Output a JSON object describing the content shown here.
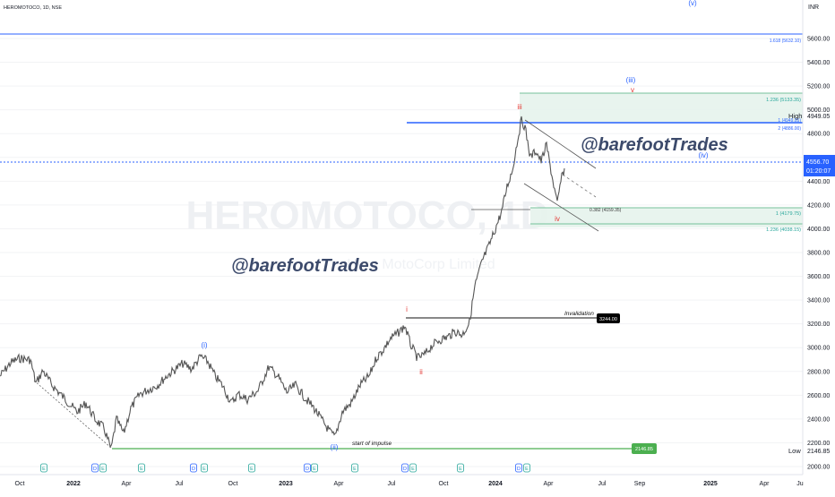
{
  "header": {
    "symbol_line": "HEROMOTOCO, 1D, NSE",
    "currency": "INR"
  },
  "watermark": {
    "big": "HEROMOTOCO, 1D",
    "sub": "Hero MotoCorp Limited"
  },
  "author_tags": [
    "@barefootTrades",
    "@barefootTrades"
  ],
  "price_tags": {
    "last_price": "4556.70",
    "countdown": "01:20:07",
    "high_label": "High",
    "high_value": "4949.05",
    "low_label": "Low",
    "low_value": "2146.85"
  },
  "annotations": {
    "start_of_impulse": "start of impulse",
    "start_value": "2146.85",
    "invalidation": "Invalidation",
    "invalidation_value": "3244.00",
    "fib_1618": "1.618 (5632.10)",
    "fib_1236_up": "1.236 (5133.35)",
    "fib_1_up": "1 (4949.05)",
    "fib_2": "2 (4886.00)",
    "fib_0382": "0.382 (4159.35)",
    "fib_1_dn": "1 (4179.75)",
    "fib_1236_dn": "1.236 (4038.15)",
    "waves": {
      "i_blue": "(i)",
      "ii_blue": "(ii)",
      "iii_blue": "(iii)",
      "iv_blue": "(iv)",
      "v_blue": "(v)",
      "i_red": "i",
      "ii_red": "ii",
      "iii_red": "iii",
      "iv_red": "iv",
      "v_red": "v"
    }
  },
  "event_icons": [
    "E",
    "D",
    "E",
    "E",
    "D",
    "E",
    "E",
    "D",
    "E",
    "E",
    "D",
    "E",
    "E",
    "D",
    "E"
  ],
  "chart_data": {
    "type": "line",
    "title": "HEROMOTOCO, 1D, NSE",
    "ylabel": "INR",
    "ylim": [
      2000,
      6000
    ],
    "y_ticks": [
      2000,
      2200,
      2400,
      2600,
      2800,
      3000,
      3200,
      3400,
      3600,
      3800,
      4000,
      4200,
      4400,
      4600,
      4800,
      5000,
      5200,
      5400,
      5600
    ],
    "x_ticks": [
      "Oct",
      "2022",
      "Apr",
      "Jul",
      "Oct",
      "2023",
      "Apr",
      "Jul",
      "Oct",
      "2024",
      "Apr",
      "Jul",
      "Sep",
      "2025",
      "Apr",
      "Ju"
    ],
    "series": [
      {
        "x": [
          "2021-09",
          "2021-11",
          "2022-01",
          "2022-03",
          "2022-05",
          "2022-07",
          "2022-09",
          "2022-11",
          "2023-01",
          "2023-03",
          "2023-05",
          "2023-07",
          "2023-09",
          "2023-11",
          "2024-01",
          "2024-02",
          "2024-03",
          "2024-04"
        ],
        "values": [
          2900,
          2750,
          2600,
          2160,
          2600,
          2850,
          2600,
          2750,
          2500,
          2250,
          2800,
          3220,
          2980,
          3100,
          4300,
          4940,
          4500,
          4556.7
        ]
      }
    ],
    "horizontal_levels": [
      5632.1,
      4949.05,
      4556.7,
      3244.0,
      2146.85
    ]
  }
}
